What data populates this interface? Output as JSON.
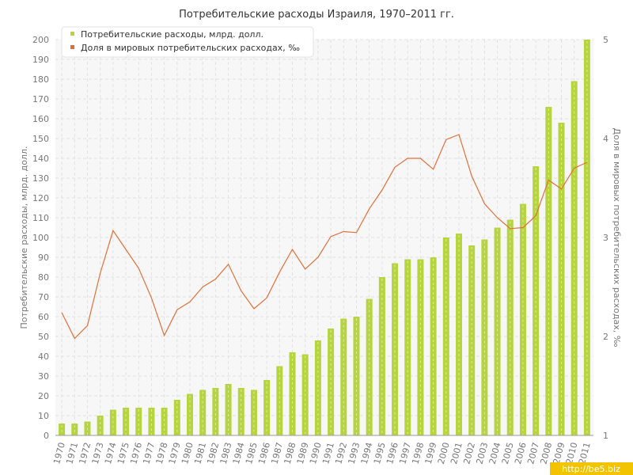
{
  "chart_data": {
    "type": "bar+line",
    "title": "Потребительские расходы Израиля, 1970–2011 гг.",
    "categories": [
      "1970",
      "1971",
      "1972",
      "1973",
      "1974",
      "1975",
      "1976",
      "1977",
      "1978",
      "1979",
      "1980",
      "1981",
      "1982",
      "1983",
      "1984",
      "1985",
      "1986",
      "1987",
      "1988",
      "1989",
      "1990",
      "1991",
      "1992",
      "1993",
      "1994",
      "1995",
      "1996",
      "1997",
      "1998",
      "1999",
      "2000",
      "2001",
      "2002",
      "2003",
      "2004",
      "2005",
      "2006",
      "2007",
      "2008",
      "2009",
      "2010",
      "2011"
    ],
    "series": [
      {
        "name": "Потребительские расходы, млрд. долл.",
        "type": "bar",
        "axis": "left",
        "color": "#b5d43d",
        "values": [
          6,
          6,
          7,
          10,
          13,
          14,
          14,
          14,
          14,
          18,
          21,
          23,
          24,
          26,
          24,
          23,
          28,
          35,
          42,
          41,
          48,
          54,
          59,
          60,
          69,
          80,
          87,
          89,
          89,
          90,
          100,
          102,
          96,
          99,
          105,
          109,
          117,
          136,
          166,
          158,
          179,
          200
        ]
      },
      {
        "name": "Доля в мировых потребительских расходах, ‰",
        "type": "line",
        "axis": "right",
        "color": "#e0703a",
        "values": [
          2.24,
          1.98,
          2.11,
          2.64,
          3.07,
          2.88,
          2.69,
          2.39,
          2.01,
          2.27,
          2.35,
          2.5,
          2.58,
          2.73,
          2.46,
          2.28,
          2.39,
          2.65,
          2.88,
          2.68,
          2.8,
          3.01,
          3.06,
          3.05,
          3.29,
          3.48,
          3.71,
          3.8,
          3.8,
          3.69,
          3.99,
          4.04,
          3.62,
          3.34,
          3.2,
          3.09,
          3.1,
          3.22,
          3.58,
          3.49,
          3.7,
          3.76
        ]
      }
    ],
    "ylabel": "Потребительские расходы, млрд. долл.",
    "y2label": "Доля в мировых потребительских расходах, ‰",
    "ylim": [
      0,
      200
    ],
    "yticks": [
      "0",
      "10",
      "20",
      "30",
      "40",
      "50",
      "60",
      "70",
      "80",
      "90",
      "100",
      "110",
      "120",
      "130",
      "140",
      "150",
      "160",
      "170",
      "180",
      "190",
      "200"
    ],
    "y2lim": [
      1,
      5
    ],
    "y2ticks": [
      "1",
      "2",
      "3",
      "4",
      "5"
    ],
    "grid": true,
    "legend_position": "top-left"
  },
  "watermark": "http://be5.biz"
}
